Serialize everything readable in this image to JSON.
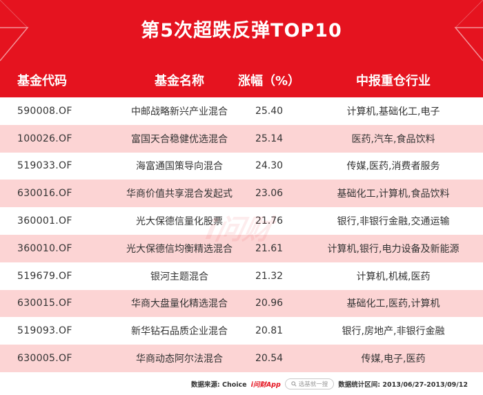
{
  "title": "第5次超跌反弹TOP10",
  "columns": {
    "code": "基金代码",
    "name": "基金名称",
    "pct": "涨幅（%）",
    "industry": "中报重仓行业"
  },
  "rows": [
    {
      "code": "590008.OF",
      "name": "中邮战略新兴产业混合",
      "pct": "25.40",
      "industry": "计算机,基础化工,电子"
    },
    {
      "code": "100026.OF",
      "name": "富国天合稳健优选混合",
      "pct": "25.14",
      "industry": "医药,汽车,食品饮料"
    },
    {
      "code": "519033.OF",
      "name": "海富通国策导向混合",
      "pct": "24.30",
      "industry": "传媒,医药,消费者服务"
    },
    {
      "code": "630016.OF",
      "name": "华商价值共享混合发起式",
      "pct": "23.06",
      "industry": "基础化工,计算机,食品饮料"
    },
    {
      "code": "360001.OF",
      "name": "光大保德信量化股票",
      "pct": "21.76",
      "industry": "银行,非银行金融,交通运输"
    },
    {
      "code": "360010.OF",
      "name": "光大保德信均衡精选混合",
      "pct": "21.61",
      "industry": "计算机,银行,电力设备及新能源"
    },
    {
      "code": "519679.OF",
      "name": "银河主题混合",
      "pct": "21.32",
      "industry": "计算机,机械,医药"
    },
    {
      "code": "630015.OF",
      "name": "华商大盘量化精选混合",
      "pct": "20.96",
      "industry": "基础化工,医药,计算机"
    },
    {
      "code": "519093.OF",
      "name": "新华钻石品质企业混合",
      "pct": "20.81",
      "industry": "银行,房地产,非银行金融"
    },
    {
      "code": "630005.OF",
      "name": "华商动态阿尔法混合",
      "pct": "20.54",
      "industry": "传媒,电子,医药"
    }
  ],
  "footer": {
    "source_label": "数据来源: Choice",
    "app_name": "i问财App",
    "search_placeholder": "选基就一搜",
    "period_label": "数据统计区间: 2013/06/27-2013/09/12"
  },
  "colors": {
    "accent": "#e5131f",
    "alt_row": "#fcd4d4"
  }
}
